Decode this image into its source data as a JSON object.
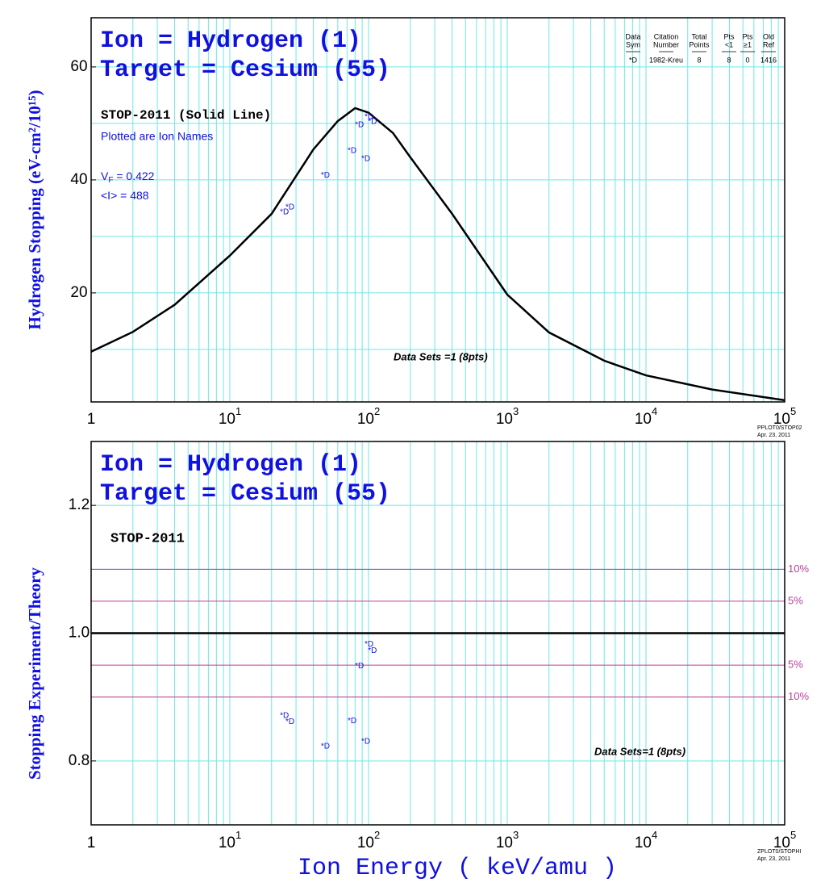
{
  "chart_data": [
    {
      "type": "line",
      "title": [
        "Ion = Hydrogen (1)",
        "Target = Cesium (55)"
      ],
      "ylabel": "Hydrogen Stopping (eV-cm²/10¹⁵)",
      "xlim": [
        1,
        100000
      ],
      "ylim": [
        0.7,
        68.7
      ],
      "xticks": [
        1,
        {
          "value": 10,
          "label": "10",
          "exponent": "1"
        },
        {
          "value": 100,
          "label": "10",
          "exponent": "2"
        },
        {
          "value": 1000,
          "label": "10",
          "exponent": "3"
        },
        {
          "value": 10000,
          "label": "10",
          "exponent": "4"
        },
        {
          "value": 100000,
          "label": "10",
          "exponent": "5"
        }
      ],
      "log_x": true,
      "minor_grid": true,
      "yticks": [
        20,
        40,
        60
      ],
      "ygrid": [
        10,
        20,
        30,
        40,
        50,
        60
      ],
      "grid_color": "#6ee6e6",
      "series": [
        {
          "name": "STOP-2011 (Solid Line)",
          "color": "#000000",
          "x": [
            1,
            2,
            4,
            10,
            20,
            40,
            60,
            80,
            100,
            150,
            200,
            400,
            1000,
            2000,
            5000,
            10000,
            30000,
            100000
          ],
          "values": [
            9.6,
            13.1,
            17.9,
            26.6,
            34.0,
            45.4,
            50.4,
            52.7,
            51.9,
            48.3,
            44.0,
            34.0,
            19.7,
            13.0,
            8.0,
            5.4,
            2.9,
            1.0
          ]
        },
        {
          "name": "*D",
          "color": "#1010e0",
          "marker": true,
          "x": [
            23.9,
            26.2,
            47.2,
            73.5,
            83,
            92.3,
            97.3,
            103
          ],
          "values": [
            34.6,
            35.4,
            41.1,
            45.4,
            50.0,
            44.0,
            51.4,
            50.6
          ]
        }
      ],
      "notes": [
        "Plotted are Ion Names"
      ],
      "params": [
        {
          "label": "V",
          "sub": "F",
          "text": " = 0.422"
        },
        {
          "label": "<I>",
          "text": " = 488"
        }
      ],
      "data_sets": "Data Sets =1 (8pts)",
      "legend_table": {
        "header": [
          [
            "Data",
            "Sym"
          ],
          [
            "Citation",
            "Number"
          ],
          [
            "Total",
            "Points"
          ],
          [
            "Pts",
            "<1"
          ],
          [
            "Pts",
            "≥1"
          ],
          [
            "Old",
            "Ref"
          ]
        ],
        "rows": [
          [
            "*D",
            "1982-Kreu",
            8,
            8,
            0,
            1416
          ]
        ]
      },
      "footer": [
        "PPLOT0/STOP02",
        "Apr. 23, 2011"
      ]
    },
    {
      "type": "scatter",
      "title": [
        "Ion = Hydrogen (1)",
        "Target = Cesium (55)"
      ],
      "ylabel": "Stopping   Experiment/Theory",
      "xlabel": "Ion  Energy  ( keV/amu )",
      "xlim": [
        1,
        100000
      ],
      "ylim": [
        0.7,
        1.3
      ],
      "xticks": [
        1,
        {
          "value": 10,
          "label": "10",
          "exponent": "1"
        },
        {
          "value": 100,
          "label": "10",
          "exponent": "2"
        },
        {
          "value": 1000,
          "label": "10",
          "exponent": "3"
        },
        {
          "value": 10000,
          "label": "10",
          "exponent": "4"
        },
        {
          "value": 100000,
          "label": "10",
          "exponent": "5"
        }
      ],
      "log_x": true,
      "minor_grid": true,
      "yticks": [
        0.8,
        {
          "value": 1,
          "label": "1.0"
        },
        1.2
      ],
      "ygrid": [
        0.8,
        0.9,
        1.0,
        1.1,
        1.2
      ],
      "grid_color": "#6ee6e6",
      "baseline": 1,
      "ref_color": "#c03c9c",
      "ref_lines": [
        {
          "value": 1.1,
          "label": "10%"
        },
        {
          "value": 1.05,
          "label": "5%"
        },
        {
          "value": 0.95,
          "label": "5%"
        },
        {
          "value": 0.9,
          "label": "10%"
        }
      ],
      "series": [
        {
          "name": "*D",
          "color": "#1010e0",
          "marker": true,
          "x": [
            23.9,
            26.2,
            47.2,
            73.5,
            83,
            92.3,
            97.3,
            103
          ],
          "values": [
            0.873,
            0.864,
            0.825,
            0.865,
            0.951,
            0.833,
            0.985,
            0.975
          ]
        }
      ],
      "model": "STOP-2011",
      "data_sets": "Data Sets=1 (8pts)",
      "footer": [
        "ZPLOT0/STOPHI",
        "Apr. 23, 2011"
      ]
    }
  ]
}
